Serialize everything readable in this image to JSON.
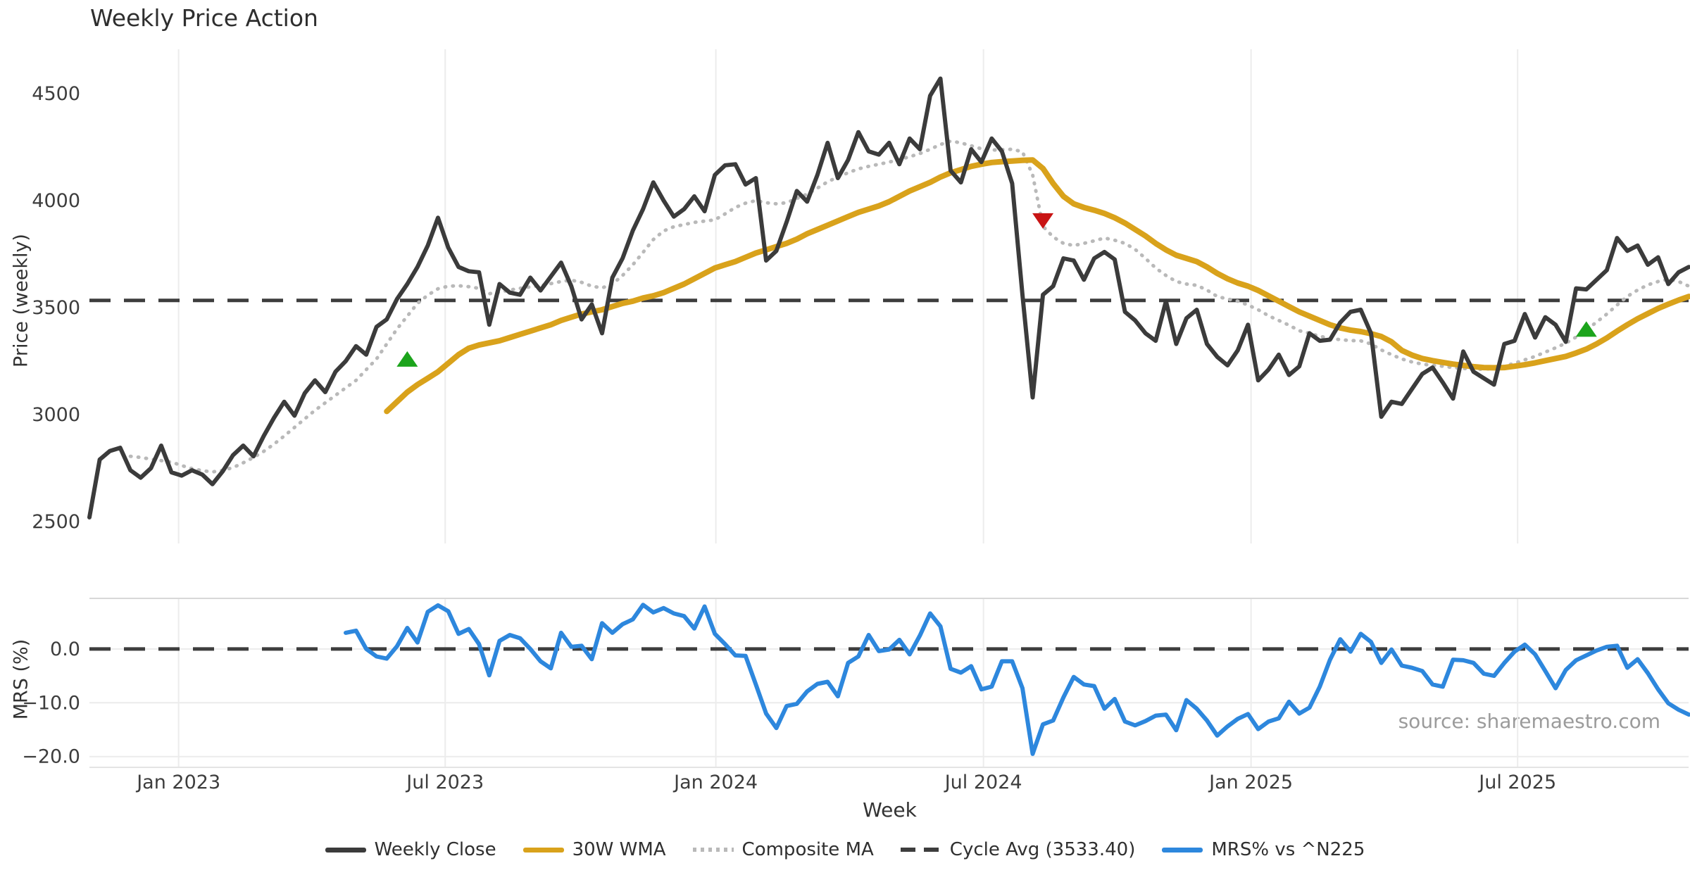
{
  "title": "Weekly Price Action",
  "source_note": "source: sharemaestro.com",
  "axes": {
    "price": {
      "label": "Price (weekly)"
    },
    "mrs": {
      "label": "MRS (%)"
    },
    "x": {
      "label": "Week"
    }
  },
  "legend": [
    {
      "label": "Weekly Close",
      "color": "#3b3b3b",
      "style": "solid"
    },
    {
      "label": "30W WMA",
      "color": "#d9a21b",
      "style": "solid"
    },
    {
      "label": "Composite MA",
      "color": "#b9b9b9",
      "style": "dotted"
    },
    {
      "label": "Cycle Avg (3533.40)",
      "color": "#3d3d3d",
      "style": "dashed"
    },
    {
      "label": "MRS% vs ^N225",
      "color": "#2d87dd",
      "style": "solid"
    }
  ],
  "chart_data": [
    {
      "type": "line",
      "title": "Weekly Price Action",
      "xlabel": "Week",
      "ylabel": "Price (weekly)",
      "x_unit": "week_index",
      "xticks": [
        {
          "week_index": 8.7,
          "label": "Jan 2023"
        },
        {
          "week_index": 34.7,
          "label": "Jul 2023"
        },
        {
          "week_index": 61.1,
          "label": "Jan 2024"
        },
        {
          "week_index": 87.2,
          "label": "Jul 2024"
        },
        {
          "week_index": 113.3,
          "label": "Jan 2025"
        },
        {
          "week_index": 139.3,
          "label": "Jul 2025"
        }
      ],
      "ylim": [
        2365,
        4707
      ],
      "yticks": [
        2500,
        3000,
        3500,
        4000,
        4500
      ],
      "grid": "vertical-only",
      "reference_line": {
        "name": "Cycle Avg (3533.40)",
        "value": 3533.4,
        "style": "dashed",
        "color": "#3d3d3d"
      },
      "series": [
        {
          "name": "Weekly Close",
          "color": "#3b3b3b",
          "style": "solid",
          "width": 6,
          "start_week": 0,
          "values": [
            2520,
            2790,
            2830,
            2845,
            2740,
            2705,
            2750,
            2855,
            2730,
            2715,
            2740,
            2720,
            2675,
            2735,
            2810,
            2855,
            2805,
            2900,
            2985,
            3060,
            2995,
            3100,
            3160,
            3105,
            3200,
            3250,
            3320,
            3280,
            3410,
            3445,
            3540,
            3610,
            3690,
            3790,
            3920,
            3780,
            3690,
            3670,
            3665,
            3420,
            3610,
            3570,
            3560,
            3640,
            3580,
            3645,
            3710,
            3600,
            3445,
            3515,
            3380,
            3640,
            3730,
            3860,
            3960,
            4085,
            4000,
            3925,
            3960,
            4020,
            3950,
            4120,
            4165,
            4170,
            4075,
            4105,
            3720,
            3765,
            3900,
            4045,
            3995,
            4120,
            4270,
            4105,
            4190,
            4320,
            4230,
            4215,
            4270,
            4170,
            4290,
            4240,
            4490,
            4570,
            4140,
            4085,
            4240,
            4180,
            4290,
            4230,
            4080,
            3560,
            3080,
            3560,
            3600,
            3730,
            3720,
            3630,
            3730,
            3760,
            3725,
            3480,
            3440,
            3380,
            3345,
            3530,
            3330,
            3450,
            3490,
            3330,
            3270,
            3230,
            3300,
            3420,
            3160,
            3210,
            3280,
            3185,
            3225,
            3380,
            3345,
            3350,
            3430,
            3480,
            3490,
            3380,
            2990,
            3060,
            3050,
            3120,
            3190,
            3220,
            3150,
            3075,
            3295,
            3200,
            3170,
            3140,
            3330,
            3345,
            3470,
            3360,
            3455,
            3420,
            3340,
            3590,
            3585,
            3630,
            3675,
            3825,
            3765,
            3790,
            3700,
            3735,
            3610,
            3665,
            3690
          ]
        },
        {
          "name": "30W WMA",
          "color": "#d9a21b",
          "style": "solid",
          "width": 8,
          "start_week": 29,
          "values": [
            3015,
            3060,
            3105,
            3140,
            3170,
            3200,
            3240,
            3280,
            3310,
            3325,
            3335,
            3345,
            3360,
            3375,
            3390,
            3405,
            3420,
            3440,
            3455,
            3470,
            3480,
            3490,
            3505,
            3520,
            3530,
            3545,
            3555,
            3570,
            3590,
            3610,
            3635,
            3660,
            3685,
            3700,
            3715,
            3735,
            3755,
            3770,
            3785,
            3800,
            3820,
            3845,
            3865,
            3885,
            3905,
            3925,
            3945,
            3960,
            3975,
            3995,
            4020,
            4045,
            4065,
            4085,
            4110,
            4130,
            4145,
            4160,
            4170,
            4178,
            4182,
            4185,
            4188,
            4190,
            4150,
            4080,
            4020,
            3985,
            3968,
            3955,
            3940,
            3920,
            3895,
            3865,
            3835,
            3800,
            3770,
            3745,
            3730,
            3715,
            3690,
            3660,
            3635,
            3615,
            3600,
            3580,
            3555,
            3530,
            3505,
            3480,
            3460,
            3440,
            3420,
            3405,
            3395,
            3388,
            3378,
            3365,
            3340,
            3300,
            3278,
            3262,
            3252,
            3244,
            3236,
            3230,
            3224,
            3220,
            3219,
            3220,
            3226,
            3233,
            3242,
            3252,
            3262,
            3272,
            3288,
            3306,
            3330,
            3358,
            3390,
            3420,
            3448,
            3472,
            3496,
            3516,
            3535,
            3552
          ]
        },
        {
          "name": "Composite MA",
          "color": "#b9b9b9",
          "style": "dotted",
          "width": 5,
          "start_week": 4,
          "values": [
            2805,
            2800,
            2792,
            2785,
            2778,
            2762,
            2748,
            2738,
            2732,
            2740,
            2752,
            2775,
            2800,
            2828,
            2862,
            2900,
            2940,
            2980,
            3020,
            3055,
            3090,
            3125,
            3160,
            3210,
            3260,
            3330,
            3400,
            3460,
            3520,
            3558,
            3588,
            3600,
            3602,
            3598,
            3590,
            3565,
            3572,
            3582,
            3590,
            3597,
            3602,
            3612,
            3622,
            3628,
            3618,
            3600,
            3592,
            3610,
            3650,
            3700,
            3758,
            3818,
            3858,
            3878,
            3888,
            3898,
            3904,
            3910,
            3938,
            3968,
            3988,
            4000,
            3990,
            3985,
            3990,
            4010,
            4030,
            4058,
            4088,
            4110,
            4130,
            4148,
            4160,
            4170,
            4180,
            4192,
            4205,
            4220,
            4240,
            4262,
            4278,
            4270,
            4256,
            4242,
            4236,
            4238,
            4240,
            4228,
            4120,
            3880,
            3830,
            3800,
            3790,
            3800,
            3812,
            3825,
            3815,
            3800,
            3772,
            3730,
            3685,
            3650,
            3622,
            3610,
            3604,
            3582,
            3552,
            3540,
            3530,
            3512,
            3490,
            3462,
            3440,
            3418,
            3392,
            3380,
            3366,
            3356,
            3350,
            3346,
            3345,
            3330,
            3302,
            3280,
            3260,
            3246,
            3236,
            3230,
            3226,
            3220,
            3216,
            3212,
            3212,
            3216,
            3226,
            3240,
            3256,
            3272,
            3292,
            3312,
            3334,
            3362,
            3396,
            3432,
            3470,
            3512,
            3552,
            3582,
            3606,
            3622,
            3632,
            3622,
            3600
          ]
        }
      ],
      "markers": [
        {
          "shape": "triangle-up",
          "color": "#1ca41c",
          "week": 31,
          "price": 3260
        },
        {
          "shape": "triangle-down",
          "color": "#c81414",
          "week": 93,
          "price": 3905
        },
        {
          "shape": "triangle-up",
          "color": "#1ca41c",
          "week": 146,
          "price": 3400
        }
      ]
    },
    {
      "type": "line",
      "xlabel": "Week",
      "ylabel": "MRS (%)",
      "x_unit": "week_index",
      "ylim": [
        -22,
        9.4
      ],
      "yticks": [
        0,
        -10,
        -20
      ],
      "ytick_labels": [
        "0.0",
        "−10.0",
        "−20.0"
      ],
      "grid": "both",
      "reference_line": {
        "name": "Zero line",
        "value": 0,
        "style": "dashed",
        "color": "#3d3d3d"
      },
      "series": [
        {
          "name": "MRS% vs ^N225",
          "color": "#2d87dd",
          "style": "solid",
          "width": 6,
          "start_week": 25,
          "values": [
            3.0,
            3.4,
            0.0,
            -1.4,
            -1.8,
            0.5,
            3.9,
            1.2,
            6.9,
            8.1,
            7.0,
            2.8,
            3.7,
            0.9,
            -4.9,
            1.5,
            2.6,
            2.0,
            0.0,
            -2.3,
            -3.6,
            3.0,
            0.4,
            0.6,
            -1.9,
            4.8,
            3.0,
            4.6,
            5.5,
            8.2,
            6.8,
            7.6,
            6.6,
            6.1,
            3.8,
            7.9,
            2.8,
            0.9,
            -1.2,
            -1.3,
            -6.6,
            -12.0,
            -14.7,
            -10.6,
            -10.2,
            -7.9,
            -6.5,
            -6.1,
            -8.8,
            -2.6,
            -1.4,
            2.6,
            -0.4,
            -0.1,
            1.7,
            -1.0,
            2.5,
            6.6,
            4.2,
            -3.7,
            -4.4,
            -3.2,
            -7.5,
            -7.0,
            -2.3,
            -2.3,
            -7.3,
            -19.5,
            -14.0,
            -13.3,
            -9.0,
            -5.2,
            -6.6,
            -6.9,
            -11.1,
            -9.3,
            -13.5,
            -14.2,
            -13.4,
            -12.4,
            -12.2,
            -15.1,
            -9.5,
            -11.1,
            -13.3,
            -16.1,
            -14.4,
            -13.0,
            -12.1,
            -14.9,
            -13.5,
            -12.9,
            -9.8,
            -12.0,
            -10.9,
            -7.0,
            -2.0,
            1.8,
            -0.5,
            2.8,
            1.3,
            -2.6,
            -0.1,
            -3.1,
            -3.5,
            -4.1,
            -6.6,
            -7.0,
            -2.0,
            -2.1,
            -2.6,
            -4.6,
            -5.0,
            -2.6,
            -0.5,
            0.8,
            -1.0,
            -4.1,
            -7.3,
            -3.9,
            -2.1,
            -1.2,
            -0.3,
            0.4,
            0.6,
            -3.5,
            -1.9,
            -4.5,
            -7.5,
            -10.1,
            -11.3,
            -12.2
          ]
        }
      ]
    }
  ]
}
